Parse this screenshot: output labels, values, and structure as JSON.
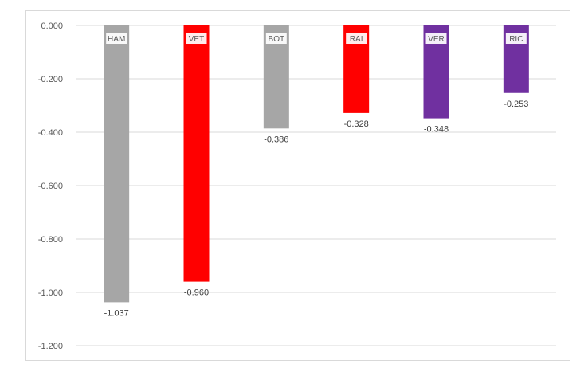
{
  "chart_data": {
    "type": "bar",
    "title": "",
    "xlabel": "",
    "ylabel": "",
    "categories": [
      "HAM",
      "VET",
      "BOT",
      "RAI",
      "VER",
      "RIC"
    ],
    "values": [
      -1.037,
      -0.96,
      -0.386,
      -0.328,
      -0.348,
      -0.253
    ],
    "value_labels": [
      "-1.037",
      "-0.960",
      "-0.386",
      "-0.328",
      "-0.348",
      "-0.253"
    ],
    "colors": [
      "#a6a6a6",
      "#ff0000",
      "#a6a6a6",
      "#ff0000",
      "#7030a0",
      "#7030a0"
    ],
    "ylim": [
      -1.2,
      0
    ],
    "yticks": [
      0,
      -0.2,
      -0.4,
      -0.6,
      -0.8,
      -1.0,
      -1.2
    ],
    "ytick_labels": [
      "0.000",
      "-0.200",
      "-0.400",
      "-0.600",
      "-0.800",
      "-1.000",
      "-1.200"
    ],
    "grid": true,
    "legend": "none"
  }
}
